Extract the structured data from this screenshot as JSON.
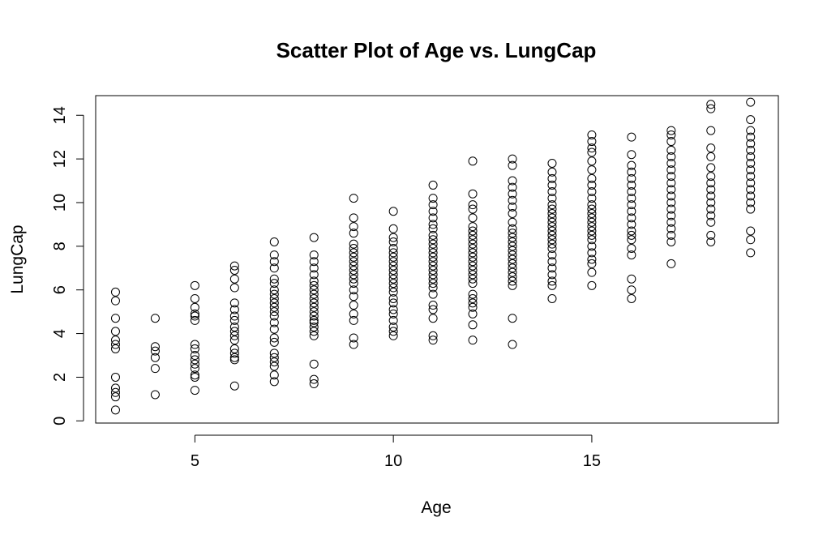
{
  "chart_data": {
    "type": "scatter",
    "title": "Scatter Plot of Age vs. LungCap",
    "xlabel": "Age",
    "ylabel": "LungCap",
    "xlim": [
      2.5,
      19.7
    ],
    "ylim": [
      -0.1,
      14.9
    ],
    "xticks": [
      5,
      10,
      15
    ],
    "yticks": [
      0,
      2,
      4,
      6,
      8,
      10,
      12,
      14
    ],
    "grid": false,
    "legend": "none",
    "marker": "open-circle",
    "marker_color": "#000000",
    "series": [
      {
        "points": [
          [
            3,
            0.5
          ],
          [
            3,
            1.1
          ],
          [
            3,
            1.3
          ],
          [
            3,
            1.5
          ],
          [
            3,
            2.0
          ],
          [
            3,
            3.3
          ],
          [
            3,
            3.5
          ],
          [
            3,
            3.7
          ],
          [
            3,
            4.1
          ],
          [
            3,
            4.7
          ],
          [
            3,
            5.5
          ],
          [
            3,
            5.9
          ],
          [
            4,
            1.2
          ],
          [
            4,
            2.4
          ],
          [
            4,
            2.9
          ],
          [
            4,
            3.2
          ],
          [
            4,
            3.4
          ],
          [
            4,
            4.7
          ],
          [
            5,
            1.4
          ],
          [
            5,
            2.0
          ],
          [
            5,
            2.1
          ],
          [
            5,
            2.4
          ],
          [
            5,
            2.6
          ],
          [
            5,
            2.8
          ],
          [
            5,
            3.0
          ],
          [
            5,
            3.3
          ],
          [
            5,
            3.5
          ],
          [
            5,
            4.6
          ],
          [
            5,
            4.8
          ],
          [
            5,
            4.9
          ],
          [
            5,
            5.2
          ],
          [
            5,
            5.6
          ],
          [
            5,
            6.2
          ],
          [
            6,
            1.6
          ],
          [
            6,
            2.8
          ],
          [
            6,
            2.9
          ],
          [
            6,
            3.1
          ],
          [
            6,
            3.3
          ],
          [
            6,
            3.7
          ],
          [
            6,
            3.9
          ],
          [
            6,
            4.1
          ],
          [
            6,
            4.3
          ],
          [
            6,
            4.6
          ],
          [
            6,
            4.8
          ],
          [
            6,
            5.1
          ],
          [
            6,
            5.4
          ],
          [
            6,
            6.1
          ],
          [
            6,
            6.5
          ],
          [
            6,
            6.9
          ],
          [
            6,
            7.1
          ],
          [
            7,
            1.8
          ],
          [
            7,
            2.1
          ],
          [
            7,
            2.5
          ],
          [
            7,
            2.7
          ],
          [
            7,
            2.9
          ],
          [
            7,
            3.1
          ],
          [
            7,
            3.6
          ],
          [
            7,
            3.8
          ],
          [
            7,
            4.2
          ],
          [
            7,
            4.5
          ],
          [
            7,
            4.8
          ],
          [
            7,
            5.0
          ],
          [
            7,
            5.2
          ],
          [
            7,
            5.4
          ],
          [
            7,
            5.6
          ],
          [
            7,
            5.8
          ],
          [
            7,
            6.0
          ],
          [
            7,
            6.3
          ],
          [
            7,
            6.5
          ],
          [
            7,
            7.0
          ],
          [
            7,
            7.3
          ],
          [
            7,
            7.6
          ],
          [
            7,
            8.2
          ],
          [
            8,
            1.7
          ],
          [
            8,
            1.9
          ],
          [
            8,
            2.6
          ],
          [
            8,
            3.9
          ],
          [
            8,
            4.1
          ],
          [
            8,
            4.3
          ],
          [
            8,
            4.5
          ],
          [
            8,
            4.6
          ],
          [
            8,
            4.8
          ],
          [
            8,
            5.0
          ],
          [
            8,
            5.2
          ],
          [
            8,
            5.4
          ],
          [
            8,
            5.6
          ],
          [
            8,
            5.8
          ],
          [
            8,
            6.0
          ],
          [
            8,
            6.2
          ],
          [
            8,
            6.4
          ],
          [
            8,
            6.7
          ],
          [
            8,
            7.0
          ],
          [
            8,
            7.3
          ],
          [
            8,
            7.6
          ],
          [
            8,
            8.4
          ],
          [
            9,
            3.5
          ],
          [
            9,
            3.8
          ],
          [
            9,
            4.6
          ],
          [
            9,
            4.9
          ],
          [
            9,
            5.3
          ],
          [
            9,
            5.7
          ],
          [
            9,
            6.0
          ],
          [
            9,
            6.3
          ],
          [
            9,
            6.5
          ],
          [
            9,
            6.7
          ],
          [
            9,
            6.9
          ],
          [
            9,
            7.1
          ],
          [
            9,
            7.3
          ],
          [
            9,
            7.5
          ],
          [
            9,
            7.7
          ],
          [
            9,
            7.9
          ],
          [
            9,
            8.1
          ],
          [
            9,
            8.6
          ],
          [
            9,
            8.9
          ],
          [
            9,
            9.3
          ],
          [
            9,
            10.2
          ],
          [
            10,
            3.9
          ],
          [
            10,
            4.1
          ],
          [
            10,
            4.3
          ],
          [
            10,
            4.6
          ],
          [
            10,
            4.9
          ],
          [
            10,
            5.1
          ],
          [
            10,
            5.4
          ],
          [
            10,
            5.6
          ],
          [
            10,
            5.9
          ],
          [
            10,
            6.1
          ],
          [
            10,
            6.3
          ],
          [
            10,
            6.5
          ],
          [
            10,
            6.7
          ],
          [
            10,
            6.9
          ],
          [
            10,
            7.1
          ],
          [
            10,
            7.3
          ],
          [
            10,
            7.5
          ],
          [
            10,
            7.7
          ],
          [
            10,
            7.9
          ],
          [
            10,
            8.2
          ],
          [
            10,
            8.4
          ],
          [
            10,
            8.8
          ],
          [
            10,
            9.6
          ],
          [
            11,
            3.7
          ],
          [
            11,
            3.9
          ],
          [
            11,
            4.7
          ],
          [
            11,
            5.1
          ],
          [
            11,
            5.3
          ],
          [
            11,
            5.8
          ],
          [
            11,
            6.1
          ],
          [
            11,
            6.3
          ],
          [
            11,
            6.5
          ],
          [
            11,
            6.7
          ],
          [
            11,
            6.9
          ],
          [
            11,
            7.1
          ],
          [
            11,
            7.3
          ],
          [
            11,
            7.5
          ],
          [
            11,
            7.7
          ],
          [
            11,
            7.9
          ],
          [
            11,
            8.1
          ],
          [
            11,
            8.3
          ],
          [
            11,
            8.5
          ],
          [
            11,
            8.8
          ],
          [
            11,
            9.0
          ],
          [
            11,
            9.3
          ],
          [
            11,
            9.6
          ],
          [
            11,
            9.9
          ],
          [
            11,
            10.2
          ],
          [
            11,
            10.8
          ],
          [
            12,
            3.7
          ],
          [
            12,
            4.4
          ],
          [
            12,
            4.9
          ],
          [
            12,
            5.2
          ],
          [
            12,
            5.4
          ],
          [
            12,
            5.6
          ],
          [
            12,
            5.8
          ],
          [
            12,
            6.3
          ],
          [
            12,
            6.5
          ],
          [
            12,
            6.7
          ],
          [
            12,
            6.9
          ],
          [
            12,
            7.1
          ],
          [
            12,
            7.3
          ],
          [
            12,
            7.5
          ],
          [
            12,
            7.7
          ],
          [
            12,
            7.9
          ],
          [
            12,
            8.1
          ],
          [
            12,
            8.3
          ],
          [
            12,
            8.5
          ],
          [
            12,
            8.7
          ],
          [
            12,
            8.9
          ],
          [
            12,
            9.3
          ],
          [
            12,
            9.7
          ],
          [
            12,
            9.9
          ],
          [
            12,
            10.4
          ],
          [
            12,
            11.9
          ],
          [
            13,
            3.5
          ],
          [
            13,
            4.7
          ],
          [
            13,
            6.2
          ],
          [
            13,
            6.4
          ],
          [
            13,
            6.6
          ],
          [
            13,
            6.8
          ],
          [
            13,
            7.0
          ],
          [
            13,
            7.2
          ],
          [
            13,
            7.4
          ],
          [
            13,
            7.6
          ],
          [
            13,
            7.8
          ],
          [
            13,
            8.0
          ],
          [
            13,
            8.2
          ],
          [
            13,
            8.4
          ],
          [
            13,
            8.6
          ],
          [
            13,
            8.8
          ],
          [
            13,
            9.1
          ],
          [
            13,
            9.5
          ],
          [
            13,
            9.8
          ],
          [
            13,
            10.1
          ],
          [
            13,
            10.4
          ],
          [
            13,
            10.7
          ],
          [
            13,
            11.0
          ],
          [
            13,
            11.7
          ],
          [
            13,
            12.0
          ],
          [
            14,
            5.6
          ],
          [
            14,
            6.2
          ],
          [
            14,
            6.4
          ],
          [
            14,
            6.7
          ],
          [
            14,
            7.0
          ],
          [
            14,
            7.3
          ],
          [
            14,
            7.6
          ],
          [
            14,
            7.9
          ],
          [
            14,
            8.1
          ],
          [
            14,
            8.3
          ],
          [
            14,
            8.5
          ],
          [
            14,
            8.7
          ],
          [
            14,
            8.9
          ],
          [
            14,
            9.1
          ],
          [
            14,
            9.3
          ],
          [
            14,
            9.5
          ],
          [
            14,
            9.7
          ],
          [
            14,
            9.9
          ],
          [
            14,
            10.2
          ],
          [
            14,
            10.5
          ],
          [
            14,
            10.8
          ],
          [
            14,
            11.1
          ],
          [
            14,
            11.4
          ],
          [
            14,
            11.8
          ],
          [
            15,
            6.2
          ],
          [
            15,
            6.8
          ],
          [
            15,
            7.2
          ],
          [
            15,
            7.4
          ],
          [
            15,
            7.7
          ],
          [
            15,
            8.0
          ],
          [
            15,
            8.3
          ],
          [
            15,
            8.5
          ],
          [
            15,
            8.7
          ],
          [
            15,
            8.9
          ],
          [
            15,
            9.1
          ],
          [
            15,
            9.3
          ],
          [
            15,
            9.5
          ],
          [
            15,
            9.7
          ],
          [
            15,
            9.9
          ],
          [
            15,
            10.2
          ],
          [
            15,
            10.5
          ],
          [
            15,
            10.8
          ],
          [
            15,
            11.1
          ],
          [
            15,
            11.5
          ],
          [
            15,
            11.9
          ],
          [
            15,
            12.3
          ],
          [
            15,
            12.5
          ],
          [
            15,
            12.8
          ],
          [
            15,
            13.1
          ],
          [
            16,
            5.6
          ],
          [
            16,
            6.0
          ],
          [
            16,
            6.5
          ],
          [
            16,
            7.6
          ],
          [
            16,
            7.9
          ],
          [
            16,
            8.3
          ],
          [
            16,
            8.5
          ],
          [
            16,
            8.7
          ],
          [
            16,
            9.0
          ],
          [
            16,
            9.3
          ],
          [
            16,
            9.6
          ],
          [
            16,
            9.9
          ],
          [
            16,
            10.2
          ],
          [
            16,
            10.5
          ],
          [
            16,
            10.8
          ],
          [
            16,
            11.1
          ],
          [
            16,
            11.4
          ],
          [
            16,
            11.7
          ],
          [
            16,
            12.2
          ],
          [
            16,
            13.0
          ],
          [
            17,
            7.2
          ],
          [
            17,
            8.2
          ],
          [
            17,
            8.5
          ],
          [
            17,
            8.8
          ],
          [
            17,
            9.1
          ],
          [
            17,
            9.4
          ],
          [
            17,
            9.7
          ],
          [
            17,
            10.0
          ],
          [
            17,
            10.3
          ],
          [
            17,
            10.6
          ],
          [
            17,
            10.9
          ],
          [
            17,
            11.2
          ],
          [
            17,
            11.5
          ],
          [
            17,
            11.8
          ],
          [
            17,
            12.1
          ],
          [
            17,
            12.4
          ],
          [
            17,
            12.8
          ],
          [
            17,
            13.1
          ],
          [
            17,
            13.3
          ],
          [
            18,
            8.2
          ],
          [
            18,
            8.5
          ],
          [
            18,
            9.1
          ],
          [
            18,
            9.4
          ],
          [
            18,
            9.7
          ],
          [
            18,
            10.0
          ],
          [
            18,
            10.3
          ],
          [
            18,
            10.6
          ],
          [
            18,
            10.9
          ],
          [
            18,
            11.2
          ],
          [
            18,
            11.6
          ],
          [
            18,
            12.1
          ],
          [
            18,
            12.5
          ],
          [
            18,
            13.3
          ],
          [
            18,
            14.3
          ],
          [
            18,
            14.5
          ],
          [
            19,
            7.7
          ],
          [
            19,
            8.3
          ],
          [
            19,
            8.7
          ],
          [
            19,
            9.7
          ],
          [
            19,
            10.0
          ],
          [
            19,
            10.3
          ],
          [
            19,
            10.6
          ],
          [
            19,
            10.9
          ],
          [
            19,
            11.2
          ],
          [
            19,
            11.5
          ],
          [
            19,
            11.8
          ],
          [
            19,
            12.1
          ],
          [
            19,
            12.4
          ],
          [
            19,
            12.7
          ],
          [
            19,
            13.0
          ],
          [
            19,
            13.3
          ],
          [
            19,
            13.8
          ],
          [
            19,
            14.6
          ]
        ]
      }
    ]
  }
}
